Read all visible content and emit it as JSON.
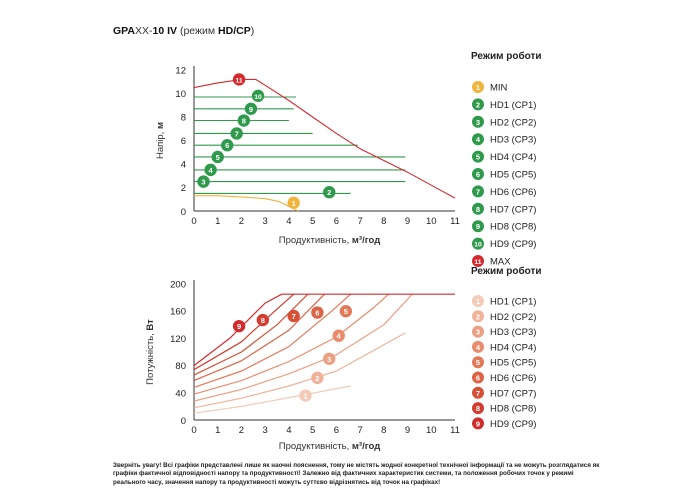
{
  "title": {
    "model": "GPA",
    "xx": "XX-",
    "model_tail": "10 IV",
    "open": " (режим ",
    "modes": "HD/CP",
    "close": ")"
  },
  "colors": {
    "min": "#f0b43c",
    "hd_green": "#2f9a4c",
    "max": "#d42a2f",
    "hd_power": [
      "#f3cbb8",
      "#f0b39a",
      "#eca083",
      "#e88c6b",
      "#e27958",
      "#dc6447",
      "#d65036",
      "#d23d30",
      "#cf2d2d"
    ]
  },
  "chart_data": [
    {
      "type": "line",
      "title": "",
      "xlabel": "Продуктивність, м³/год",
      "ylabel": "Напір, м",
      "xlim": [
        0,
        11
      ],
      "ylim": [
        0,
        12
      ],
      "xticks": [
        0,
        1,
        2,
        3,
        4,
        5,
        6,
        7,
        8,
        9,
        10,
        11
      ],
      "yticks": [
        0,
        2,
        4,
        6,
        8,
        10,
        12
      ],
      "grid": false,
      "legend_title": "Режим роботи",
      "legend_position": "right",
      "series": [
        {
          "badge": "1",
          "name": "MIN",
          "color": "#f0b43c",
          "x": [
            0,
            1,
            2,
            3,
            3.6,
            4.4
          ],
          "y": [
            1.3,
            1.3,
            1.2,
            1.05,
            0.8,
            0.0
          ],
          "label_at": [
            4.2,
            0.7
          ]
        },
        {
          "badge": "2",
          "name": "HD1 (CP1)",
          "color": "#2f9a4c",
          "x": [
            0,
            6.6
          ],
          "y": [
            1.5,
            1.5
          ],
          "label_at": [
            5.7,
            1.6
          ]
        },
        {
          "badge": "3",
          "name": "HD2 (CP2)",
          "color": "#2f9a4c",
          "x": [
            0,
            8.9
          ],
          "y": [
            2.5,
            2.5
          ],
          "label_at": [
            0.4,
            2.5
          ]
        },
        {
          "badge": "4",
          "name": "HD3 (CP3)",
          "color": "#2f9a4c",
          "x": [
            0,
            8.9
          ],
          "y": [
            3.5,
            3.5
          ],
          "label_at": [
            0.7,
            3.5
          ]
        },
        {
          "badge": "5",
          "name": "HD4 (CP4)",
          "color": "#2f9a4c",
          "x": [
            0,
            8.9
          ],
          "y": [
            4.6,
            4.6
          ],
          "label_at": [
            1.0,
            4.6
          ]
        },
        {
          "badge": "6",
          "name": "HD5 (CP5)",
          "color": "#2f9a4c",
          "x": [
            0,
            6.9
          ],
          "y": [
            5.6,
            5.6
          ],
          "label_at": [
            1.4,
            5.6
          ]
        },
        {
          "badge": "7",
          "name": "HD6 (CP6)",
          "color": "#2f9a4c",
          "x": [
            0,
            5.0
          ],
          "y": [
            6.6,
            6.6
          ],
          "label_at": [
            1.8,
            6.6
          ]
        },
        {
          "badge": "8",
          "name": "HD7 (CP7)",
          "color": "#2f9a4c",
          "x": [
            0,
            4.0
          ],
          "y": [
            7.7,
            7.7
          ],
          "label_at": [
            2.1,
            7.7
          ]
        },
        {
          "badge": "9",
          "name": "HD8 (CP8)",
          "color": "#2f9a4c",
          "x": [
            0,
            4.2
          ],
          "y": [
            8.7,
            8.7
          ],
          "label_at": [
            2.4,
            8.7
          ]
        },
        {
          "badge": "10",
          "name": "HD9 (CP9)",
          "color": "#2f9a4c",
          "x": [
            0,
            4.3
          ],
          "y": [
            9.7,
            9.7
          ],
          "label_at": [
            2.7,
            9.8
          ]
        },
        {
          "badge": "11",
          "name": "MAX",
          "color": "#d42a2f",
          "x": [
            0,
            1,
            2,
            2.6,
            3,
            4,
            5,
            6,
            7,
            8,
            9,
            10,
            11
          ],
          "y": [
            10.5,
            10.9,
            11.2,
            11.2,
            10.7,
            9.4,
            8.0,
            6.6,
            5.3,
            4.3,
            3.3,
            2.2,
            1.1
          ],
          "label_at": [
            1.9,
            11.2
          ]
        }
      ]
    },
    {
      "type": "line",
      "title": "",
      "xlabel": "Продуктивність, м³/год",
      "ylabel": "Потужність, Вт",
      "xlim": [
        0,
        11
      ],
      "ylim": [
        0,
        200
      ],
      "xticks": [
        0,
        1,
        2,
        3,
        4,
        5,
        6,
        7,
        8,
        9,
        10,
        11
      ],
      "yticks": [
        0,
        40,
        80,
        120,
        160,
        200
      ],
      "grid": false,
      "legend_title": "Режим роботи",
      "legend_position": "right",
      "series": [
        {
          "badge": "1",
          "name": "HD1 (CP1)",
          "x": [
            0,
            2,
            4,
            6.6
          ],
          "y": [
            10,
            20,
            33,
            50
          ],
          "label_at": [
            4.7,
            36
          ]
        },
        {
          "badge": "2",
          "name": "HD2 (CP2)",
          "x": [
            0,
            2,
            4,
            6,
            8.9
          ],
          "y": [
            18,
            32,
            50,
            72,
            128
          ],
          "label_at": [
            5.2,
            62
          ]
        },
        {
          "badge": "3",
          "name": "HD3 (CP3)",
          "x": [
            0,
            2,
            4,
            6,
            8,
            9.2
          ],
          "y": [
            28,
            45,
            68,
            96,
            140,
            185
          ],
          "label_at": [
            5.7,
            90
          ]
        },
        {
          "badge": "4",
          "name": "HD4 (CP4)",
          "x": [
            0,
            2,
            4,
            6,
            7.6,
            8.2
          ],
          "y": [
            38,
            58,
            86,
            122,
            166,
            185
          ],
          "label_at": [
            6.1,
            124
          ]
        },
        {
          "badge": "5",
          "name": "HD5 (CP5)",
          "x": [
            0,
            2,
            4,
            5.8,
            6.6
          ],
          "y": [
            48,
            72,
            108,
            160,
            185
          ],
          "label_at": [
            6.4,
            160
          ]
        },
        {
          "badge": "6",
          "name": "HD6 (CP6)",
          "x": [
            0,
            2,
            4,
            5.5
          ],
          "y": [
            58,
            87,
            132,
            185
          ],
          "label_at": [
            5.2,
            158
          ]
        },
        {
          "badge": "7",
          "name": "HD7 (CP7)",
          "x": [
            0,
            2,
            3.5,
            4.8
          ],
          "y": [
            66,
            100,
            140,
            185
          ],
          "label_at": [
            4.2,
            153
          ]
        },
        {
          "badge": "8",
          "name": "HD8 (CP8)",
          "x": [
            0,
            2,
            3.4,
            4.2
          ],
          "y": [
            74,
            115,
            160,
            185
          ],
          "label_at": [
            2.9,
            147
          ]
        },
        {
          "badge": "9",
          "name": "HD9 (CP9)",
          "x": [
            0,
            1.5,
            3.0,
            3.7,
            11
          ],
          "y": [
            80,
            120,
            172,
            185,
            185
          ],
          "label_at": [
            1.9,
            138
          ]
        }
      ]
    }
  ],
  "footer": "Зверніть увагу! Всі графіки представлені лише як наочні пояснення, тому не містять жодної конкретної технічної інформації та не можуть розглядатися як графіки фактичної відповідності напору та продуктивності! Залежно від фактичних характеристик системи, та положення робочих точок у режимі реального часу, значення напору та продуктивності можуть суттєво відрізнятись від точок на графіках!"
}
